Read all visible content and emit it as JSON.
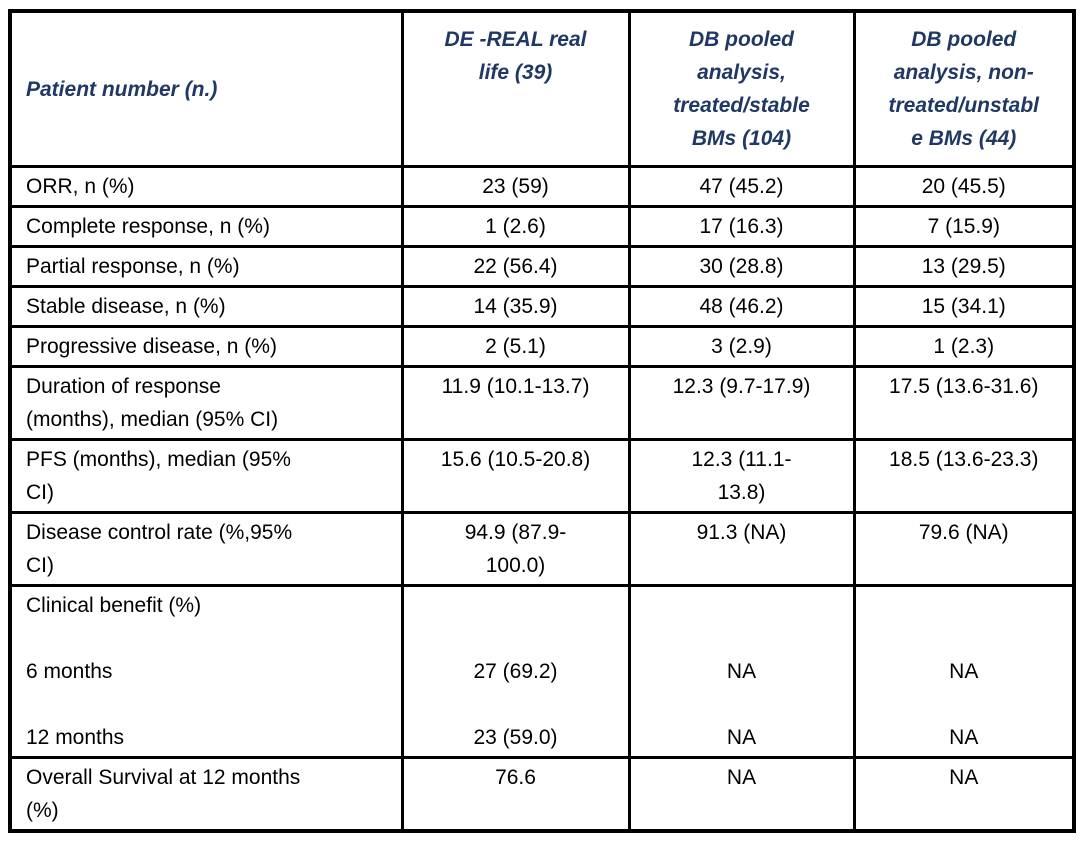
{
  "table": {
    "colors": {
      "header_text": "#1F3864",
      "body_text": "#000000",
      "border": "#000000",
      "background": "#FFFFFF"
    },
    "header": {
      "col0": "Patient number (n.)",
      "col1": "DE -REAL real\nlife (39)",
      "col2": "DB pooled\nanalysis,\ntreated/stable\nBMs (104)",
      "col3": "DB pooled\nanalysis, non-\ntreated/unstabl\ne BMs (44)"
    },
    "rows": [
      {
        "label": "ORR, n (%)",
        "values": [
          "23 (59)",
          "47 (45.2)",
          "20 (45.5)"
        ]
      },
      {
        "label": "Complete response, n (%)",
        "values": [
          "1 (2.6)",
          "17 (16.3)",
          "7 (15.9)"
        ]
      },
      {
        "label": "Partial response, n (%)",
        "values": [
          "22 (56.4)",
          "30 (28.8)",
          "13 (29.5)"
        ]
      },
      {
        "label": "Stable disease, n (%)",
        "values": [
          "14 (35.9)",
          "48 (46.2)",
          "15 (34.1)"
        ]
      },
      {
        "label": "Progressive disease, n (%)",
        "values": [
          "2 (5.1)",
          "3 (2.9)",
          "1 (2.3)"
        ]
      },
      {
        "label": "Duration of response\n(months), median (95% CI)",
        "values": [
          "11.9 (10.1-13.7)",
          "12.3 (9.7-17.9)",
          "17.5 (13.6-31.6)"
        ]
      },
      {
        "label": "PFS (months), median (95%\nCI)",
        "values": [
          "15.6 (10.5-20.8)",
          "12.3 (11.1-\n13.8)",
          "18.5 (13.6-23.3)"
        ]
      },
      {
        "label": "Disease control rate (%,95%\nCI)",
        "values": [
          "94.9 (87.9-\n100.0)",
          "91.3 (NA)",
          "79.6 (NA)"
        ]
      },
      {
        "label": "Clinical benefit (%)\n\n6 months\n\n12 months",
        "values": [
          "\n\n27 (69.2)\n\n23 (59.0)",
          "\n\nNA\n\nNA",
          "\n\nNA\n\nNA"
        ]
      },
      {
        "label": "Overall Survival at 12 months\n(%)",
        "values": [
          "76.6",
          "NA",
          "NA"
        ]
      }
    ]
  }
}
